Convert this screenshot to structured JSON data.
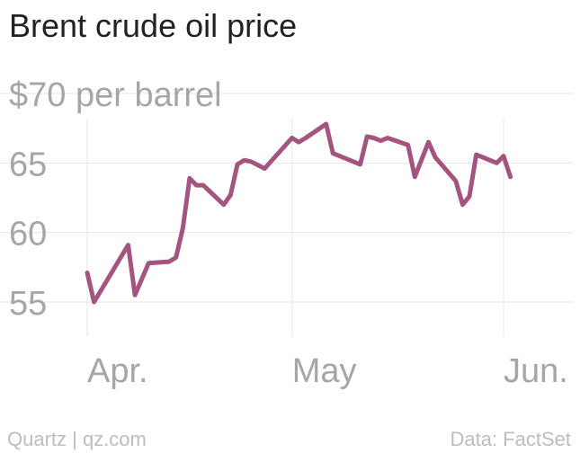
{
  "title": "Brent crude oil price",
  "footer": {
    "source_left": "Quartz | qz.com",
    "source_right": "Data: FactSet"
  },
  "chart_data": {
    "type": "line",
    "title": "Brent crude oil price",
    "ylabel": "$70 per barrel",
    "ylim": [
      52,
      72
    ],
    "yticks": [
      55,
      60,
      65,
      70
    ],
    "ytick_labels": [
      "55",
      "60",
      "65",
      "$70 per barrel"
    ],
    "xticks": [
      {
        "x": "2017-04-01",
        "label": "Apr."
      },
      {
        "x": "2017-05-01",
        "label": "May"
      },
      {
        "x": "2017-06-01",
        "label": "Jun."
      }
    ],
    "xlim": [
      "2017-03-31",
      "2017-06-11"
    ],
    "grid": true,
    "color": "#a3547f",
    "series": [
      {
        "x": [
          "2017-04-01",
          "2017-04-02",
          "2017-04-07",
          "2017-04-08",
          "2017-04-10",
          "2017-04-13",
          "2017-04-14",
          "2017-04-15",
          "2017-04-16",
          "2017-04-17",
          "2017-04-18",
          "2017-04-21",
          "2017-04-22",
          "2017-04-23",
          "2017-04-24",
          "2017-04-25",
          "2017-04-27",
          "2017-05-01",
          "2017-05-02",
          "2017-05-03",
          "2017-05-06",
          "2017-05-07",
          "2017-05-11",
          "2017-05-12",
          "2017-05-13",
          "2017-05-14",
          "2017-05-15",
          "2017-05-18",
          "2017-05-19",
          "2017-05-21",
          "2017-05-22",
          "2017-05-25",
          "2017-05-26",
          "2017-05-27",
          "2017-05-28",
          "2017-05-31",
          "2017-06-01",
          "2017-06-02"
        ],
        "y": [
          57.1,
          55.0,
          59.1,
          55.5,
          57.8,
          57.9,
          58.2,
          60.3,
          63.9,
          63.4,
          63.4,
          62.0,
          62.7,
          64.9,
          65.2,
          65.1,
          64.6,
          66.8,
          66.5,
          66.8,
          67.8,
          65.7,
          64.9,
          66.9,
          66.8,
          66.6,
          66.8,
          66.3,
          64.0,
          66.5,
          65.4,
          63.7,
          62.0,
          62.6,
          65.6,
          65.0,
          65.5,
          64.0
        ]
      }
    ]
  }
}
